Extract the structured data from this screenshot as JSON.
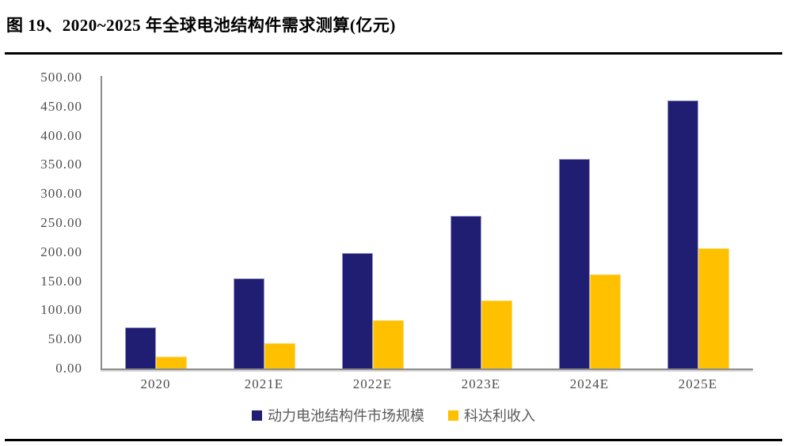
{
  "header": {
    "title": "图 19、2020~2025 年全球电池结构件需求测算(亿元)"
  },
  "chart_data": {
    "type": "bar",
    "title": "图 19、2020~2025 年全球电池结构件需求测算(亿元)",
    "categories": [
      "2020",
      "2021E",
      "2022E",
      "2023E",
      "2024E",
      "2025E"
    ],
    "series": [
      {
        "name": "动力电池结构件市场规模",
        "color": "#1F1E72",
        "edge_color": "#9494CC",
        "values": [
          70,
          155,
          198,
          262,
          360,
          460
        ]
      },
      {
        "name": "科达利收入",
        "color": "#FFC000",
        "edge_color": "#FFD75E",
        "values": [
          20,
          44,
          83,
          117,
          162,
          206
        ]
      }
    ],
    "xlabel": "",
    "ylabel": "",
    "ylim": [
      0,
      500
    ],
    "ytick_step": 50,
    "yticks": [
      "0.00",
      "50.00",
      "100.00",
      "150.00",
      "200.00",
      "250.00",
      "300.00",
      "350.00",
      "400.00",
      "450.00",
      "500.00"
    ],
    "grid": false,
    "legend_position": "bottom",
    "axis_color": "#8C8C8C",
    "tick_label_color": "#4D4D4D",
    "legend_text_color": "#595959"
  }
}
